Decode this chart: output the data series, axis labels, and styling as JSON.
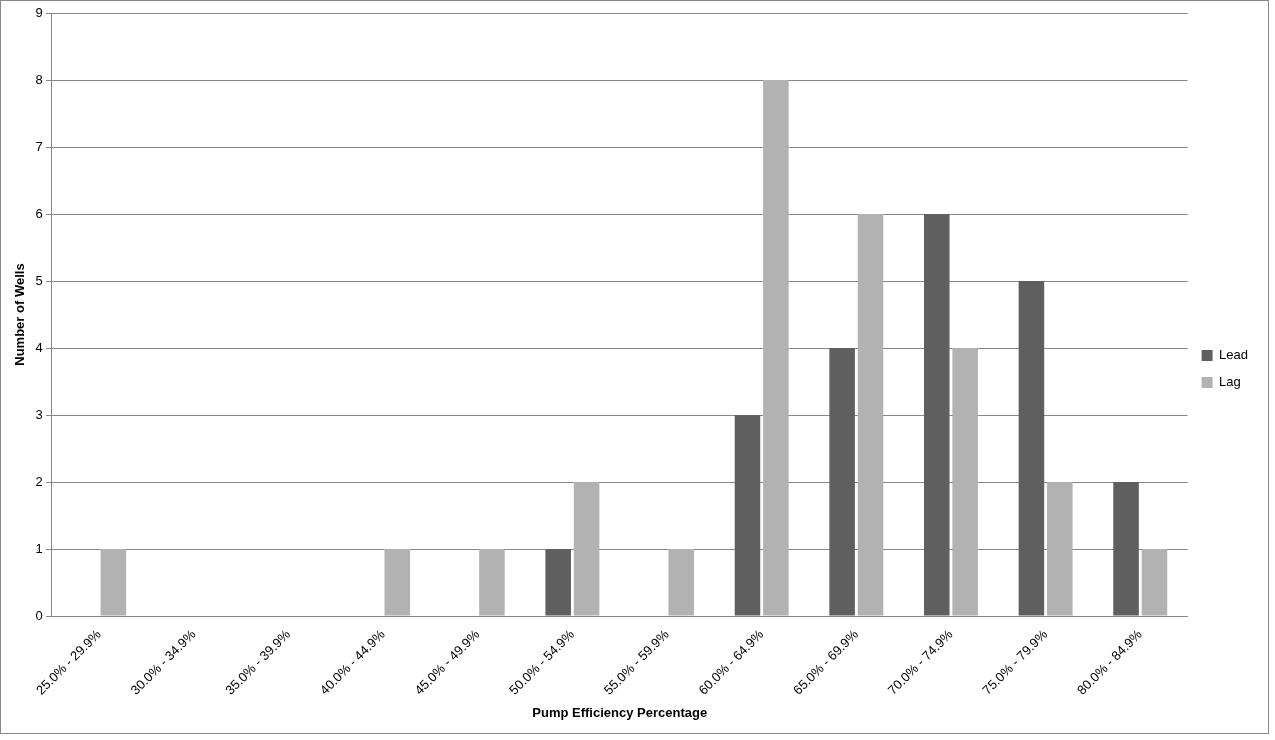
{
  "chart_data": {
    "type": "bar",
    "xlabel": "Pump Efficiency Percentage",
    "ylabel": "Number of Wells",
    "categories": [
      "25.0% - 29.9%",
      "30.0% - 34.9%",
      "35.0% - 39.9%",
      "40.0% - 44.9%",
      "45.0% - 49.9%",
      "50.0% - 54.9%",
      "55.0% - 59.9%",
      "60.0% - 64.9%",
      "65.0% - 69.9%",
      "70.0% - 74.9%",
      "75.0% - 79.9%",
      "80.0% - 84.9%"
    ],
    "series": [
      {
        "name": "Lead",
        "color": "#5f5f5f",
        "values": [
          0,
          0,
          0,
          0,
          0,
          1,
          0,
          3,
          4,
          6,
          5,
          2
        ]
      },
      {
        "name": "Lag",
        "color": "#b2b2b2",
        "values": [
          1,
          0,
          0,
          1,
          1,
          2,
          1,
          8,
          6,
          4,
          2,
          1
        ]
      }
    ],
    "ylim": [
      0,
      9
    ],
    "yticks": [
      0,
      1,
      2,
      3,
      4,
      5,
      6,
      7,
      8,
      9
    ],
    "grid": "y",
    "legend": "right"
  }
}
